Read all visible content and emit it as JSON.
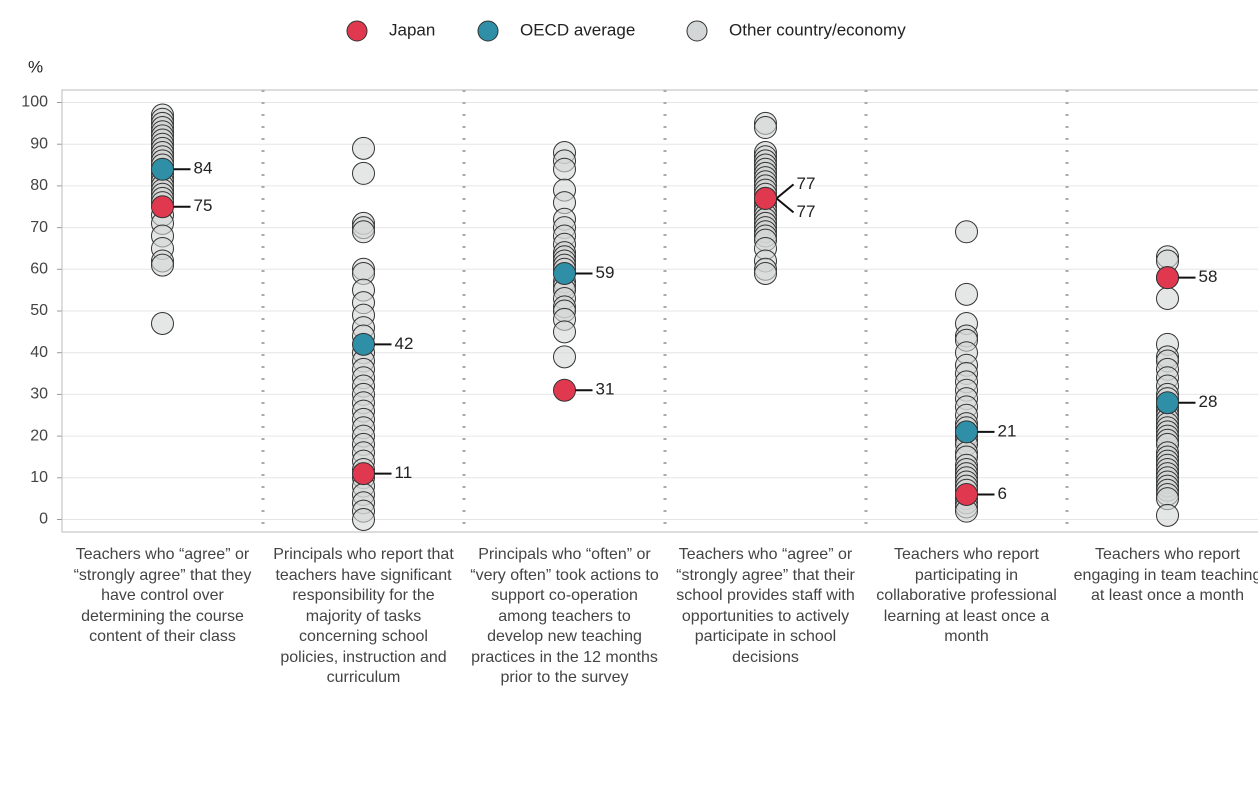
{
  "chart_data": {
    "type": "strip",
    "y_label": "%",
    "legend": "top",
    "grid": true,
    "ylim": [
      -3,
      103
    ],
    "yticks": [
      0,
      10,
      20,
      30,
      40,
      50,
      60,
      70,
      80,
      90,
      100
    ],
    "categories": [
      "Teachers who “agree” or “strongly agree” that they have control over determining the course content of their class",
      "Principals who report that teachers have significant responsibility for the majority of tasks concerning school policies, instruction and curriculum",
      "Principals who “often” or “very often” took actions to support co-operation among teachers to develop new teaching practices in the 12 months prior to the survey",
      "Teachers who “agree” or “strongly agree” that their school provides staff with opportunities to actively participate in school decisions",
      "Teachers who report participating in collaborative professional learning at least once a month",
      "Teachers who report engaging in team teaching at least once a month"
    ],
    "series": [
      {
        "name": "Japan",
        "color": "#e0394f",
        "values": [
          75,
          11,
          31,
          77,
          6,
          58
        ]
      },
      {
        "name": "OECD average",
        "color": "#2e8fa6",
        "values": [
          84,
          42,
          59,
          77,
          21,
          28
        ]
      },
      {
        "name": "Other country/economy",
        "color": "#d3d6d6",
        "values": [
          [
            97,
            96,
            95,
            94,
            93,
            92,
            91,
            90,
            89,
            88,
            87,
            86,
            85,
            83,
            82,
            81,
            80,
            79,
            78,
            77,
            76,
            73,
            71,
            68,
            65,
            62,
            61,
            47
          ],
          [
            89,
            83,
            71,
            70,
            69,
            60,
            59,
            55,
            52,
            49,
            46,
            44,
            40,
            38,
            36,
            34,
            32,
            30,
            28,
            26,
            24,
            22,
            20,
            18,
            16,
            14,
            12,
            10,
            8,
            6,
            4,
            2,
            0
          ],
          [
            88,
            86,
            84,
            79,
            76,
            72,
            70,
            68,
            66,
            64,
            63,
            62,
            61,
            60,
            57,
            56,
            55,
            53,
            51,
            50,
            48,
            45,
            39
          ],
          [
            95,
            94,
            88,
            87,
            86,
            85,
            84,
            83,
            82,
            81,
            80,
            79,
            78,
            76,
            75,
            74,
            73,
            72,
            71,
            70,
            69,
            68,
            67,
            65,
            62,
            60,
            59
          ],
          [
            69,
            54,
            47,
            44,
            43,
            40,
            37,
            35,
            33,
            31,
            29,
            27,
            25,
            23,
            22,
            20,
            19,
            18,
            16,
            15,
            13,
            12,
            11,
            10,
            9,
            8,
            7,
            5,
            4,
            3,
            2
          ],
          [
            63,
            62,
            58,
            53,
            42,
            39,
            38,
            36,
            34,
            32,
            30,
            29,
            27,
            26,
            25,
            24,
            23,
            22,
            21,
            20,
            19,
            18,
            16,
            15,
            14,
            13,
            12,
            11,
            10,
            9,
            8,
            7,
            6,
            5,
            1
          ]
        ]
      }
    ]
  }
}
